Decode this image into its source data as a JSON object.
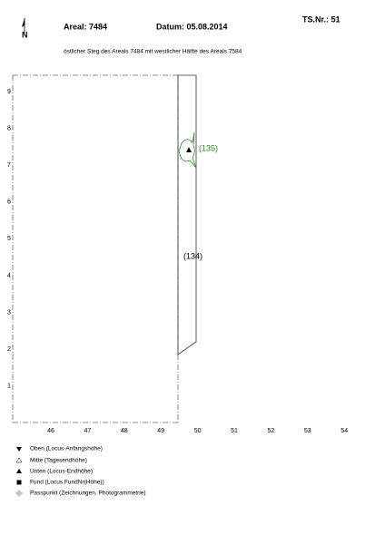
{
  "header": {
    "areal": "Areal: 7484",
    "datum": "Datum: 05.08.2014",
    "ts_nr": "TS.Nr.: 51",
    "north": "N",
    "subtitle": "östlicher Steg des Areals 7484 mit westlicher Hälfte des Areals 7584"
  },
  "plan": {
    "x_labels": [
      "46",
      "47",
      "48",
      "49",
      "50",
      "51",
      "52",
      "53",
      "54"
    ],
    "y_labels": [
      "9",
      "8",
      "7",
      "6",
      "5",
      "4",
      "3",
      "2",
      "1"
    ],
    "features": [
      {
        "label": "(134)"
      },
      {
        "label": "(135)"
      }
    ]
  },
  "legend": [
    {
      "label": "Oben (Locus-Anfangshöhe)"
    },
    {
      "label": "Mitte (Tagesendhöhe)"
    },
    {
      "label": "Unten (Locus-Endhöhe)"
    },
    {
      "label": "Fund (Locus.FundNr(Höhe))"
    },
    {
      "label": "Passpunkt (Zeichnungen, Photogrammetrie)"
    }
  ]
}
